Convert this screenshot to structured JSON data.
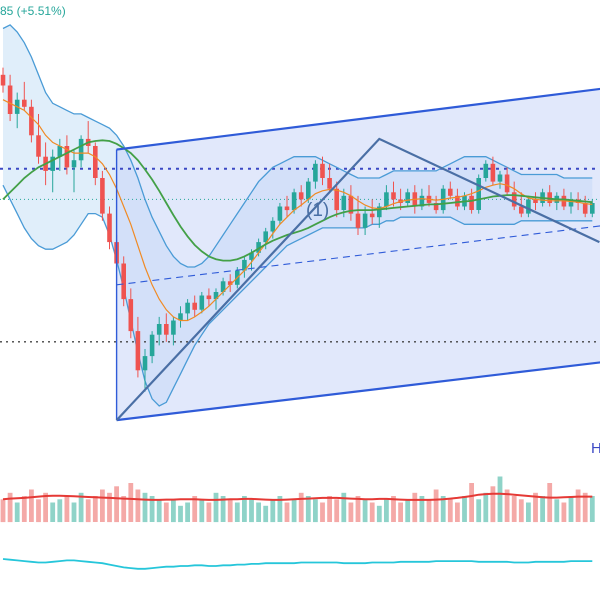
{
  "header": {
    "change_text": "85 (+5.51%)"
  },
  "annotations": {
    "wave_label": "(1)",
    "edge_label": "H"
  },
  "colors": {
    "up": "#26a69a",
    "down": "#ef5350",
    "bollinger": "#4a9bd6",
    "bollinger_fill": "#cfe5f7",
    "ma_fast": "#f08a24",
    "ma_slow": "#43a047",
    "channel": "#2f5bd8",
    "channel_fill": "#c9d6f7",
    "volume_ma": "#e53935",
    "oscillator": "#26c6da",
    "level_line": "#3b48c4"
  },
  "chart_data": {
    "type": "candlestick",
    "ohlc": [
      [
        3.95,
        4.05,
        3.7,
        3.8
      ],
      [
        3.8,
        3.95,
        3.3,
        3.4
      ],
      [
        3.4,
        3.7,
        3.2,
        3.6
      ],
      [
        3.6,
        3.85,
        3.45,
        3.5
      ],
      [
        3.5,
        3.6,
        3.0,
        3.1
      ],
      [
        3.1,
        3.4,
        2.7,
        2.8
      ],
      [
        2.8,
        3.0,
        2.4,
        2.6
      ],
      [
        2.6,
        2.9,
        2.3,
        2.8
      ],
      [
        2.8,
        3.05,
        2.6,
        2.95
      ],
      [
        2.95,
        3.1,
        2.55,
        2.65
      ],
      [
        2.65,
        2.9,
        2.3,
        2.75
      ],
      [
        2.75,
        3.1,
        2.65,
        3.05
      ],
      [
        3.05,
        3.3,
        2.85,
        2.95
      ],
      [
        2.95,
        3.0,
        2.4,
        2.5
      ],
      [
        2.5,
        2.6,
        1.9,
        2.0
      ],
      [
        2.0,
        2.1,
        1.5,
        1.6
      ],
      [
        1.6,
        1.7,
        1.2,
        1.3
      ],
      [
        1.3,
        1.4,
        0.7,
        0.8
      ],
      [
        0.8,
        0.95,
        0.25,
        0.35
      ],
      [
        0.35,
        0.55,
        -0.3,
        -0.2
      ],
      [
        -0.2,
        0.1,
        -0.5,
        0.0
      ],
      [
        0.0,
        0.35,
        -0.1,
        0.3
      ],
      [
        0.3,
        0.55,
        0.15,
        0.45
      ],
      [
        0.45,
        0.6,
        0.2,
        0.3
      ],
      [
        0.3,
        0.55,
        0.15,
        0.5
      ],
      [
        0.5,
        0.7,
        0.4,
        0.6
      ],
      [
        0.6,
        0.8,
        0.5,
        0.75
      ],
      [
        0.75,
        0.85,
        0.55,
        0.65
      ],
      [
        0.65,
        0.9,
        0.6,
        0.85
      ],
      [
        0.85,
        0.95,
        0.7,
        0.8
      ],
      [
        0.8,
        0.95,
        0.65,
        0.9
      ],
      [
        0.9,
        1.1,
        0.85,
        1.05
      ],
      [
        1.05,
        1.15,
        0.9,
        1.0
      ],
      [
        1.0,
        1.25,
        0.95,
        1.2
      ],
      [
        1.2,
        1.4,
        1.1,
        1.35
      ],
      [
        1.35,
        1.5,
        1.2,
        1.45
      ],
      [
        1.45,
        1.65,
        1.4,
        1.6
      ],
      [
        1.6,
        1.8,
        1.5,
        1.75
      ],
      [
        1.75,
        1.95,
        1.65,
        1.9
      ],
      [
        1.9,
        2.15,
        1.85,
        2.1
      ],
      [
        2.1,
        2.25,
        1.95,
        2.05
      ],
      [
        2.05,
        2.35,
        2.0,
        2.3
      ],
      [
        2.3,
        2.4,
        2.1,
        2.2
      ],
      [
        2.2,
        2.5,
        2.15,
        2.45
      ],
      [
        2.45,
        2.75,
        2.35,
        2.7
      ],
      [
        2.7,
        2.8,
        2.4,
        2.5
      ],
      [
        2.5,
        2.7,
        2.3,
        2.35
      ],
      [
        2.35,
        2.45,
        1.95,
        2.05
      ],
      [
        2.05,
        2.35,
        1.95,
        2.25
      ],
      [
        2.25,
        2.4,
        1.9,
        2.0
      ],
      [
        2.0,
        2.25,
        1.7,
        1.8
      ],
      [
        1.8,
        2.1,
        1.7,
        2.0
      ],
      [
        2.0,
        2.2,
        1.85,
        1.95
      ],
      [
        1.95,
        2.15,
        1.8,
        2.1
      ],
      [
        2.1,
        2.4,
        2.05,
        2.3
      ],
      [
        2.3,
        2.45,
        2.1,
        2.2
      ],
      [
        2.2,
        2.35,
        2.05,
        2.15
      ],
      [
        2.15,
        2.35,
        2.1,
        2.3
      ],
      [
        2.3,
        2.4,
        2.0,
        2.1
      ],
      [
        2.1,
        2.35,
        2.05,
        2.25
      ],
      [
        2.25,
        2.4,
        2.1,
        2.15
      ],
      [
        2.15,
        2.25,
        2.0,
        2.05
      ],
      [
        2.05,
        2.4,
        2.0,
        2.35
      ],
      [
        2.35,
        2.45,
        2.2,
        2.25
      ],
      [
        2.25,
        2.35,
        2.05,
        2.1
      ],
      [
        2.1,
        2.3,
        2.05,
        2.25
      ],
      [
        2.25,
        2.35,
        2.0,
        2.05
      ],
      [
        2.05,
        2.55,
        2.0,
        2.5
      ],
      [
        2.5,
        2.75,
        2.45,
        2.7
      ],
      [
        2.7,
        2.8,
        2.4,
        2.45
      ],
      [
        2.45,
        2.6,
        2.35,
        2.55
      ],
      [
        2.55,
        2.65,
        2.25,
        2.3
      ],
      [
        2.3,
        2.45,
        2.05,
        2.1
      ],
      [
        2.1,
        2.3,
        1.95,
        2.0
      ],
      [
        2.0,
        2.25,
        1.95,
        2.2
      ],
      [
        2.2,
        2.3,
        2.05,
        2.15
      ],
      [
        2.15,
        2.35,
        2.1,
        2.3
      ],
      [
        2.3,
        2.4,
        2.1,
        2.15
      ],
      [
        2.15,
        2.3,
        2.05,
        2.25
      ],
      [
        2.25,
        2.35,
        2.05,
        2.1
      ],
      [
        2.1,
        2.3,
        2.0,
        2.2
      ],
      [
        2.2,
        2.3,
        2.05,
        2.15
      ],
      [
        2.15,
        2.25,
        1.95,
        2.0
      ],
      [
        2.0,
        2.2,
        1.95,
        2.15
      ]
    ],
    "upper_band": [
      4.6,
      4.65,
      4.55,
      4.4,
      4.2,
      3.95,
      3.7,
      3.55,
      3.5,
      3.45,
      3.4,
      3.4,
      3.35,
      3.3,
      3.25,
      3.2,
      3.1,
      2.95,
      2.75,
      2.5,
      2.2,
      1.95,
      1.75,
      1.55,
      1.4,
      1.3,
      1.25,
      1.25,
      1.3,
      1.4,
      1.55,
      1.7,
      1.85,
      2.0,
      2.15,
      2.3,
      2.45,
      2.55,
      2.65,
      2.7,
      2.75,
      2.8,
      2.8,
      2.8,
      2.8,
      2.75,
      2.7,
      2.65,
      2.6,
      2.55,
      2.5,
      2.5,
      2.5,
      2.5,
      2.55,
      2.6,
      2.6,
      2.6,
      2.6,
      2.6,
      2.6,
      2.6,
      2.65,
      2.7,
      2.75,
      2.8,
      2.8,
      2.8,
      2.8,
      2.75,
      2.7,
      2.65,
      2.6,
      2.55,
      2.55,
      2.55,
      2.55,
      2.55,
      2.55,
      2.5,
      2.5,
      2.5,
      2.5,
      2.5
    ],
    "lower_band": [
      2.4,
      2.2,
      2.0,
      1.8,
      1.65,
      1.55,
      1.5,
      1.5,
      1.55,
      1.6,
      1.7,
      1.85,
      2.0,
      2.0,
      1.95,
      1.7,
      1.35,
      0.95,
      0.5,
      0.05,
      -0.35,
      -0.6,
      -0.7,
      -0.65,
      -0.45,
      -0.25,
      -0.05,
      0.15,
      0.3,
      0.45,
      0.55,
      0.65,
      0.75,
      0.85,
      0.95,
      1.05,
      1.15,
      1.25,
      1.35,
      1.45,
      1.55,
      1.6,
      1.65,
      1.7,
      1.75,
      1.8,
      1.8,
      1.8,
      1.8,
      1.8,
      1.8,
      1.8,
      1.85,
      1.85,
      1.9,
      1.9,
      1.95,
      1.95,
      1.95,
      1.95,
      1.95,
      1.95,
      1.95,
      1.95,
      1.9,
      1.85,
      1.85,
      1.85,
      1.85,
      1.85,
      1.85,
      1.85,
      1.85,
      1.9,
      1.9,
      1.9,
      1.9,
      1.9,
      1.9,
      1.9,
      1.9,
      1.9,
      1.9,
      1.9
    ],
    "ma_fast": [
      3.6,
      3.55,
      3.5,
      3.45,
      3.35,
      3.25,
      3.1,
      3.0,
      2.95,
      2.9,
      2.85,
      2.85,
      2.85,
      2.8,
      2.7,
      2.55,
      2.35,
      2.1,
      1.85,
      1.55,
      1.25,
      1.0,
      0.8,
      0.65,
      0.55,
      0.5,
      0.5,
      0.55,
      0.62,
      0.7,
      0.8,
      0.9,
      1.0,
      1.1,
      1.2,
      1.32,
      1.45,
      1.58,
      1.72,
      1.85,
      1.95,
      2.05,
      2.12,
      2.2,
      2.28,
      2.32,
      2.34,
      2.33,
      2.3,
      2.25,
      2.18,
      2.12,
      2.08,
      2.07,
      2.1,
      2.14,
      2.17,
      2.19,
      2.2,
      2.21,
      2.2,
      2.19,
      2.2,
      2.22,
      2.23,
      2.25,
      2.28,
      2.32,
      2.37,
      2.4,
      2.42,
      2.4,
      2.35,
      2.28,
      2.22,
      2.2,
      2.19,
      2.18,
      2.18,
      2.18,
      2.17,
      2.16,
      2.14,
      2.13
    ],
    "ma_slow": [
      2.2,
      2.3,
      2.4,
      2.5,
      2.58,
      2.65,
      2.7,
      2.75,
      2.8,
      2.85,
      2.9,
      2.95,
      3.0,
      3.02,
      3.03,
      3.02,
      2.98,
      2.92,
      2.85,
      2.75,
      2.62,
      2.48,
      2.32,
      2.15,
      1.98,
      1.82,
      1.68,
      1.56,
      1.47,
      1.4,
      1.36,
      1.34,
      1.34,
      1.36,
      1.4,
      1.45,
      1.51,
      1.57,
      1.62,
      1.66,
      1.7,
      1.73,
      1.76,
      1.8,
      1.85,
      1.9,
      1.95,
      1.99,
      2.02,
      2.04,
      2.05,
      2.05,
      2.05,
      2.06,
      2.07,
      2.08,
      2.09,
      2.1,
      2.11,
      2.12,
      2.13,
      2.13,
      2.14,
      2.15,
      2.16,
      2.17,
      2.18,
      2.2,
      2.22,
      2.24,
      2.25,
      2.26,
      2.26,
      2.25,
      2.24,
      2.23,
      2.22,
      2.21,
      2.2,
      2.2,
      2.19,
      2.18,
      2.17,
      2.16
    ],
    "levels": {
      "dotted_upper": 2.63,
      "dotted_lower": 0.2,
      "thin_dotted": 2.2
    },
    "wave_points": [
      [
        16,
        -0.9
      ],
      [
        53,
        3.05
      ],
      [
        84,
        1.6
      ]
    ],
    "channel": {
      "lower": [
        [
          16,
          -0.9
        ],
        [
          100,
          0.1
        ]
      ],
      "upper": [
        [
          16,
          2.9
        ],
        [
          100,
          3.95
        ]
      ]
    },
    "channel_midline": [
      [
        16,
        1.0
      ],
      [
        100,
        2.02
      ]
    ],
    "volume": [
      7,
      9,
      6,
      8,
      10,
      7,
      9,
      6,
      7,
      8,
      6,
      9,
      7,
      8,
      10,
      9,
      11,
      8,
      12,
      10,
      9,
      8,
      7,
      6,
      7,
      5,
      6,
      8,
      7,
      6,
      9,
      8,
      7,
      6,
      8,
      7,
      6,
      5,
      7,
      8,
      6,
      7,
      9,
      8,
      7,
      6,
      8,
      7,
      9,
      6,
      8,
      7,
      6,
      5,
      7,
      8,
      6,
      7,
      9,
      8,
      7,
      10,
      8,
      7,
      6,
      8,
      12,
      7,
      9,
      11,
      14,
      10,
      8,
      7,
      6,
      9,
      8,
      12,
      7,
      6,
      8,
      10,
      9,
      8
    ],
    "volume_ma": [
      7.0,
      7.2,
      7.3,
      7.4,
      7.6,
      7.8,
      8.0,
      8.1,
      8.1,
      8.0,
      7.9,
      7.8,
      7.7,
      7.6,
      7.5,
      7.4,
      7.3,
      7.2,
      7.1,
      7.0,
      6.9,
      6.8,
      6.8,
      6.9,
      6.9,
      7.0,
      7.0,
      7.0,
      6.9,
      6.8,
      6.8,
      6.9,
      7.0,
      7.0,
      7.1,
      7.1,
      7.0,
      6.9,
      6.8,
      6.8,
      6.9,
      7.0,
      7.1,
      7.2,
      7.3,
      7.4,
      7.4,
      7.4,
      7.3,
      7.2,
      7.1,
      7.0,
      7.0,
      7.1,
      7.1,
      7.0,
      6.9,
      6.8,
      6.8,
      6.8,
      6.8,
      6.9,
      7.0,
      7.2,
      7.4,
      7.7,
      8.0,
      8.4,
      8.6,
      8.7,
      8.7,
      8.6,
      8.4,
      8.2,
      8.0,
      7.8,
      7.6,
      7.5,
      7.5,
      7.6,
      7.7,
      7.8,
      7.8,
      7.8
    ],
    "oscillator": [
      50,
      49,
      48,
      47,
      46,
      45,
      45,
      46,
      47,
      48,
      48,
      47,
      46,
      45,
      44,
      42,
      40,
      38,
      37,
      36,
      36,
      37,
      38,
      39,
      39,
      40,
      40,
      41,
      41,
      40,
      40,
      41,
      41,
      42,
      42,
      43,
      43,
      44,
      44,
      44,
      44,
      44,
      45,
      45,
      45,
      45,
      45,
      45,
      44,
      44,
      44,
      44,
      45,
      45,
      45,
      45,
      46,
      46,
      46,
      46,
      46,
      47,
      47,
      47,
      47,
      47,
      47,
      46,
      46,
      46,
      46,
      46,
      45,
      45,
      45,
      46,
      46,
      46,
      46,
      46,
      47,
      47,
      47,
      47
    ],
    "ylim": [
      -1.6,
      5.0
    ],
    "volume_ylim": [
      0,
      16
    ],
    "oscillator_ylim": [
      20,
      80
    ]
  }
}
